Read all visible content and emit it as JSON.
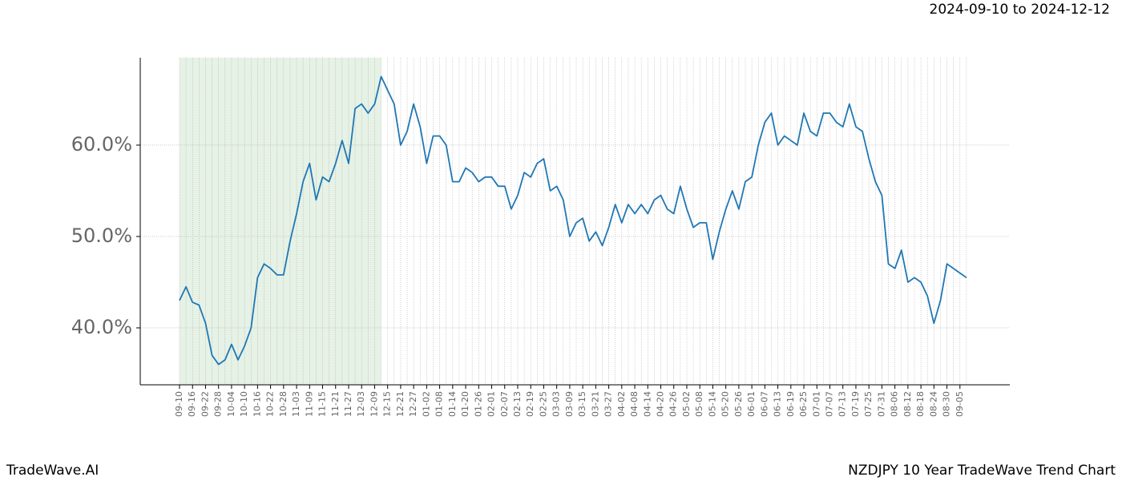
{
  "chart_data": {
    "type": "line",
    "title": "2024-09-10 to 2024-12-12",
    "footer_left": "TradeWave.AI",
    "footer_right": "NZDJPY 10 Year TradeWave Trend Chart",
    "categories": [
      "09-10",
      null,
      "09-16",
      null,
      "09-22",
      null,
      "09-28",
      null,
      "10-04",
      null,
      "10-10",
      null,
      "10-16",
      null,
      "10-22",
      null,
      "10-28",
      null,
      "11-03",
      null,
      "11-09",
      null,
      "11-15",
      null,
      "11-21",
      null,
      "11-27",
      null,
      "12-03",
      null,
      "12-09",
      null,
      "12-15",
      null,
      "12-21",
      null,
      "12-27",
      null,
      "01-02",
      null,
      "01-08",
      null,
      "01-14",
      null,
      "01-20",
      null,
      "01-26",
      null,
      "02-01",
      null,
      "02-07",
      null,
      "02-13",
      null,
      "02-19",
      null,
      "02-25",
      null,
      "03-03",
      null,
      "03-09",
      null,
      "03-15",
      null,
      "03-21",
      null,
      "03-27",
      null,
      "04-02",
      null,
      "04-08",
      null,
      "04-14",
      null,
      "04-20",
      null,
      "04-26",
      null,
      "05-02",
      null,
      "05-08",
      null,
      "05-14",
      null,
      "05-20",
      null,
      "05-26",
      null,
      "06-01",
      null,
      "06-07",
      null,
      "06-13",
      null,
      "06-19",
      null,
      "06-25",
      null,
      "07-01",
      null,
      "07-07",
      null,
      "07-13",
      null,
      "07-19",
      null,
      "07-25",
      null,
      "07-31",
      null,
      "08-06",
      null,
      "08-12",
      null,
      "08-18",
      null,
      "08-24",
      null,
      "08-30",
      null,
      "09-05",
      null
    ],
    "series": [
      {
        "color": "#1f77b4",
        "values": [
          43.0,
          44.5,
          42.8,
          42.5,
          40.5,
          37,
          36,
          36.5,
          38.2,
          36.5,
          38,
          40,
          45.5,
          47,
          46.5,
          45.8,
          45.8,
          49.5,
          52.5,
          56,
          58,
          54,
          56.5,
          56,
          58,
          60.5,
          58,
          64,
          64.5,
          63.5,
          64.5,
          67.5,
          66,
          64.5,
          60,
          61.5,
          64.5,
          62,
          58,
          61,
          61,
          60,
          56,
          56,
          57.5,
          57,
          56,
          56.5,
          56.5,
          55.5,
          55.5,
          53,
          54.5,
          57,
          56.5,
          58,
          58.5,
          55,
          55.5,
          54,
          50,
          51.5,
          52,
          49.5,
          50.5,
          49,
          51,
          53.5,
          51.5,
          53.5,
          52.5,
          53.5,
          52.5,
          54,
          54.5,
          53,
          52.5,
          55.5,
          53,
          51,
          51.5,
          51.5,
          47.5,
          50.5,
          53,
          55,
          53,
          56,
          56.5,
          60,
          62.5,
          63.5,
          60,
          61,
          60.5,
          60,
          63.5,
          61.5,
          61,
          63.5,
          63.5,
          62.5,
          62,
          64.5,
          62,
          61.5,
          58.5,
          56,
          54.5,
          47,
          46.5,
          48.5,
          45,
          45.5,
          45,
          43.5,
          40.5,
          43,
          47,
          46.5,
          46,
          45.5
        ]
      }
    ],
    "shade": {
      "from": 0,
      "to": 31,
      "color": "#e6f2e6"
    },
    "ylim": [
      33.77,
      69.56
    ],
    "yticks": [
      {
        "value": 40,
        "label": "40.0%"
      },
      {
        "value": 50,
        "label": "50.0%"
      },
      {
        "value": 60,
        "label": "60.0%"
      }
    ],
    "grid": true
  }
}
